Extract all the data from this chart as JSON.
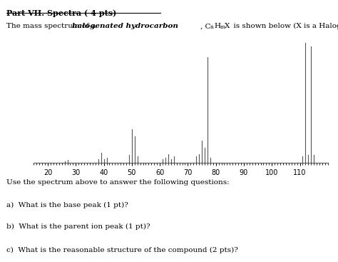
{
  "title": "Part VII. Spectra ( 4 pts)",
  "xlim": [
    15,
    120
  ],
  "ylim": [
    0,
    1.05
  ],
  "xticks": [
    20,
    30,
    40,
    50,
    60,
    70,
    80,
    90,
    100,
    110
  ],
  "peaks": [
    [
      26,
      0.01
    ],
    [
      27,
      0.02
    ],
    [
      38,
      0.03
    ],
    [
      39,
      0.08
    ],
    [
      40,
      0.03
    ],
    [
      41,
      0.04
    ],
    [
      49,
      0.06
    ],
    [
      50,
      0.28
    ],
    [
      51,
      0.22
    ],
    [
      52,
      0.05
    ],
    [
      61,
      0.03
    ],
    [
      62,
      0.04
    ],
    [
      63,
      0.07
    ],
    [
      64,
      0.03
    ],
    [
      65,
      0.05
    ],
    [
      73,
      0.05
    ],
    [
      74,
      0.07
    ],
    [
      75,
      0.18
    ],
    [
      76,
      0.12
    ],
    [
      77,
      0.88
    ],
    [
      78,
      0.04
    ],
    [
      111,
      0.05
    ],
    [
      112,
      1.0
    ],
    [
      113,
      0.06
    ],
    [
      114,
      0.97
    ],
    [
      115,
      0.06
    ]
  ],
  "questions": [
    "Use the spectrum above to answer the following questions:",
    "a)  What is the base peak (1 pt)?",
    "b)  What is the parent ion peak (1 pt)?",
    "c)  What is the reasonable structure of the compound (2 pts)?"
  ],
  "background_color": "#ffffff",
  "bar_color": "#555555",
  "text_color": "#000000",
  "figsize": [
    4.74,
    3.67
  ],
  "dpi": 100
}
